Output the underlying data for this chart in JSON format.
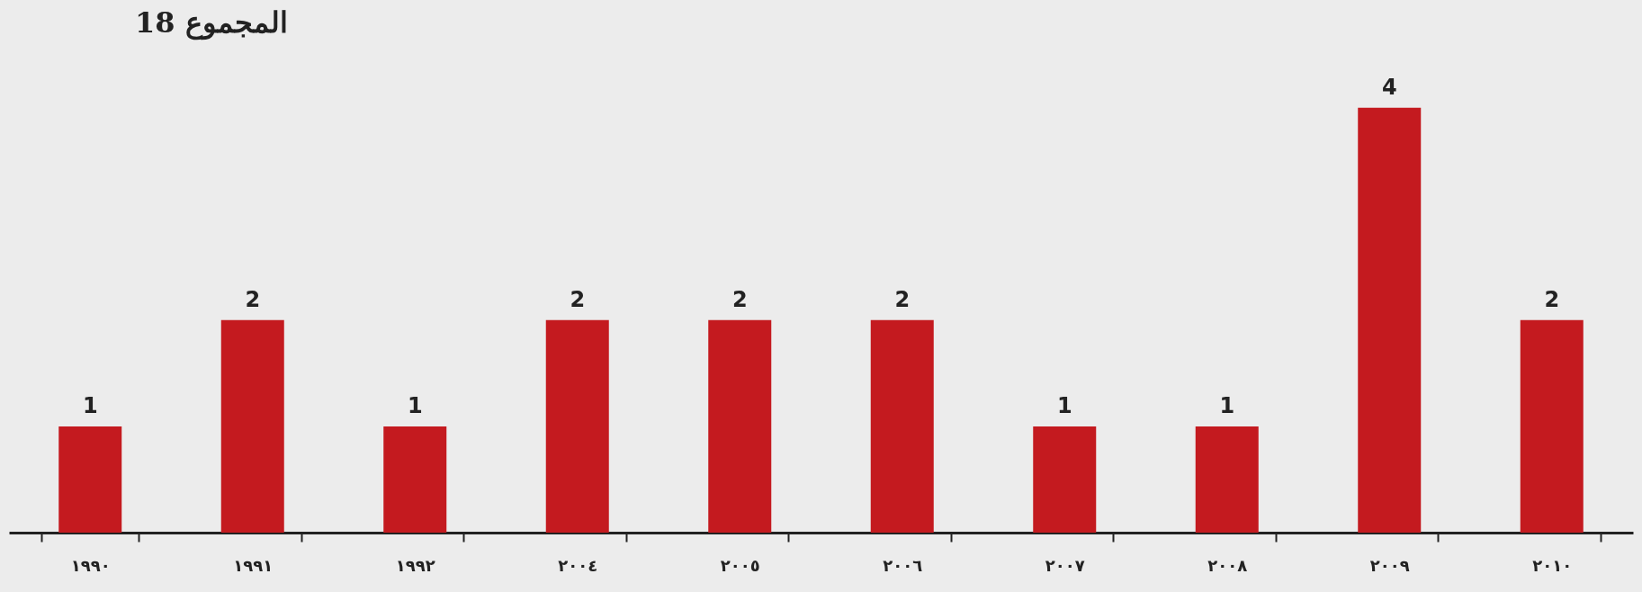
{
  "chart_data": {
    "type": "bar",
    "title": "18 المجموع",
    "categories": [
      "١٩٩٠",
      "١٩٩١",
      "١٩٩٢",
      "٢٠٠٤",
      "٢٠٠٥",
      "٢٠٠٦",
      "٢٠٠٧",
      "٢٠٠٨",
      "٢٠٠٩",
      "٢٠١٠"
    ],
    "values": [
      1,
      2,
      1,
      2,
      2,
      2,
      1,
      1,
      4,
      2
    ],
    "color": "#c41a1f",
    "data_labels": true
  }
}
